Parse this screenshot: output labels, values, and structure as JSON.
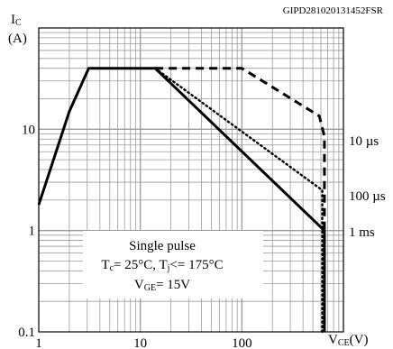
{
  "chart_data": {
    "type": "line",
    "figure_code": "GIPD281020131452FSR",
    "ylabel_main": "I",
    "ylabel_sub": "C",
    "ylabel_unit": "(A)",
    "xlabel_main": "V",
    "xlabel_sub": "CE",
    "xlabel_unit": "(V)",
    "xscale": "log",
    "yscale": "log",
    "xlim": [
      1,
      1000
    ],
    "ylim": [
      0.1,
      100
    ],
    "grid": true,
    "x_tick_labels": [
      "1",
      "10",
      "100"
    ],
    "y_tick_labels": [
      "0.1",
      "1",
      "10"
    ],
    "series": [
      {
        "name": "10 µs",
        "style": "dashed",
        "points": [
          [
            14,
            40
          ],
          [
            100,
            40
          ],
          [
            580,
            13.5
          ],
          [
            650,
            8.5
          ],
          [
            650,
            0.1
          ]
        ]
      },
      {
        "name": "100 µs",
        "style": "dotted",
        "points": [
          [
            14,
            40
          ],
          [
            620,
            2.5
          ],
          [
            620,
            0.1
          ]
        ]
      },
      {
        "name": "1 ms",
        "style": "solid",
        "points": [
          [
            1,
            1.8
          ],
          [
            2,
            15
          ],
          [
            3.1,
            40
          ],
          [
            14,
            40
          ],
          [
            650,
            1
          ],
          [
            650,
            0.1
          ]
        ]
      }
    ],
    "annotation_lines": [
      "Single pulse",
      "T",
      "c",
      "= 25°C, T",
      "j",
      "<= 175°C",
      "V",
      "GE",
      "= 15V"
    ],
    "series_labels_right": [
      "10 µs",
      "100 µs",
      "1 ms"
    ]
  }
}
